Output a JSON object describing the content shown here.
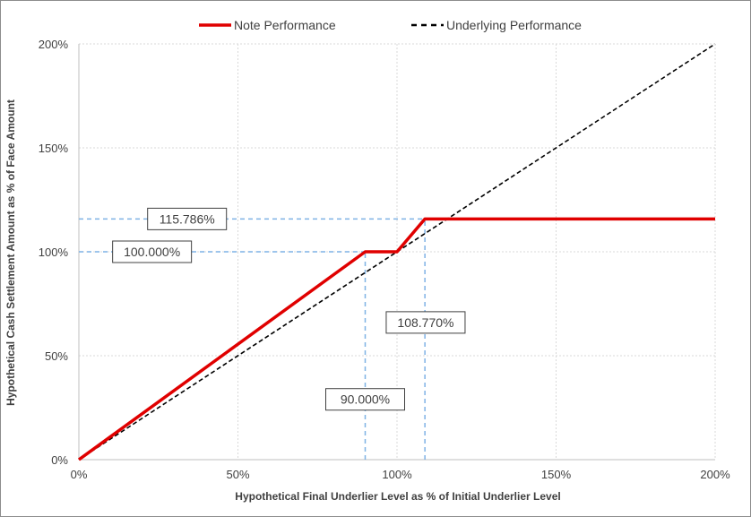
{
  "chart_data": {
    "type": "line",
    "title": "",
    "xlabel": "Hypothetical Final Underlier Level as % of Initial Underlier Level",
    "ylabel": "Hypothetical Cash Settlement Amount as % of Face Amount",
    "xlim": [
      0,
      200
    ],
    "ylim": [
      0,
      200
    ],
    "x_ticks": [
      0,
      50,
      100,
      150,
      200
    ],
    "y_ticks": [
      0,
      50,
      100,
      150,
      200
    ],
    "x_tick_labels": [
      "0%",
      "50%",
      "100%",
      "150%",
      "200%"
    ],
    "y_tick_labels": [
      "0%",
      "50%",
      "100%",
      "150%",
      "200%"
    ],
    "grid": true,
    "legend_position": "top-center",
    "series": [
      {
        "name": "Note Performance",
        "color": "#e00000",
        "style": "solid",
        "points": [
          [
            0,
            0
          ],
          [
            90,
            100
          ],
          [
            100,
            100
          ],
          [
            108.77,
            115.786
          ],
          [
            200,
            115.786
          ]
        ]
      },
      {
        "name": "Underlying Performance",
        "color": "#000000",
        "style": "dashed",
        "points": [
          [
            0,
            0
          ],
          [
            200,
            200
          ]
        ]
      }
    ],
    "reference_lines": [
      {
        "orientation": "horizontal",
        "value": 100,
        "from": 0,
        "to": 90,
        "color": "#7fb2e5"
      },
      {
        "orientation": "horizontal",
        "value": 115.786,
        "from": 0,
        "to": 108.77,
        "color": "#7fb2e5"
      },
      {
        "orientation": "vertical",
        "value": 90,
        "from": 0,
        "to": 100,
        "color": "#7fb2e5"
      },
      {
        "orientation": "vertical",
        "value": 108.77,
        "from": 0,
        "to": 115.786,
        "color": "#7fb2e5"
      }
    ],
    "annotations": [
      {
        "text": "115.786%",
        "x": 34,
        "y": 115.786
      },
      {
        "text": "100.000%",
        "x": 23,
        "y": 100
      },
      {
        "text": "108.770%",
        "x": 109,
        "y": 66
      },
      {
        "text": "90.000%",
        "x": 90,
        "y": 29
      }
    ]
  }
}
